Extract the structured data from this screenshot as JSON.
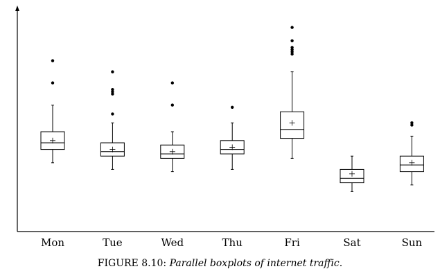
{
  "chart_data": {
    "type": "box",
    "categories": [
      "Mon",
      "Tue",
      "Wed",
      "Thu",
      "Fri",
      "Sat",
      "Sun"
    ],
    "grid": false,
    "y_axis_labels": false,
    "ylim": [
      0,
      100
    ],
    "series": [
      {
        "category": "Mon",
        "whisker_low": 31,
        "q1": 37,
        "median": 40,
        "q3": 45,
        "whisker_high": 57,
        "mean": 41,
        "outliers": [
          67,
          77
        ]
      },
      {
        "category": "Tue",
        "whisker_low": 28,
        "q1": 34,
        "median": 36,
        "q3": 40,
        "whisker_high": 49,
        "mean": 37,
        "outliers": [
          53,
          62,
          63,
          64,
          72
        ]
      },
      {
        "category": "Wed",
        "whisker_low": 27,
        "q1": 33,
        "median": 35,
        "q3": 39,
        "whisker_high": 45,
        "mean": 36,
        "outliers": [
          57,
          67
        ]
      },
      {
        "category": "Thu",
        "whisker_low": 28,
        "q1": 35,
        "median": 37,
        "q3": 41,
        "whisker_high": 49,
        "mean": 38,
        "outliers": [
          56
        ]
      },
      {
        "category": "Fri",
        "whisker_low": 33,
        "q1": 42,
        "median": 46,
        "q3": 54,
        "whisker_high": 72,
        "mean": 49,
        "outliers": [
          80,
          81,
          82,
          83,
          86,
          92
        ]
      },
      {
        "category": "Sat",
        "whisker_low": 18,
        "q1": 22,
        "median": 24,
        "q3": 28,
        "whisker_high": 34,
        "mean": 26,
        "outliers": []
      },
      {
        "category": "Sun",
        "whisker_low": 21,
        "q1": 27,
        "median": 30,
        "q3": 34,
        "whisker_high": 43,
        "mean": 31,
        "outliers": [
          48,
          49
        ]
      }
    ]
  },
  "caption": {
    "prefix": "FIGURE 8.10: ",
    "text": "Parallel boxplots of internet traffic."
  }
}
